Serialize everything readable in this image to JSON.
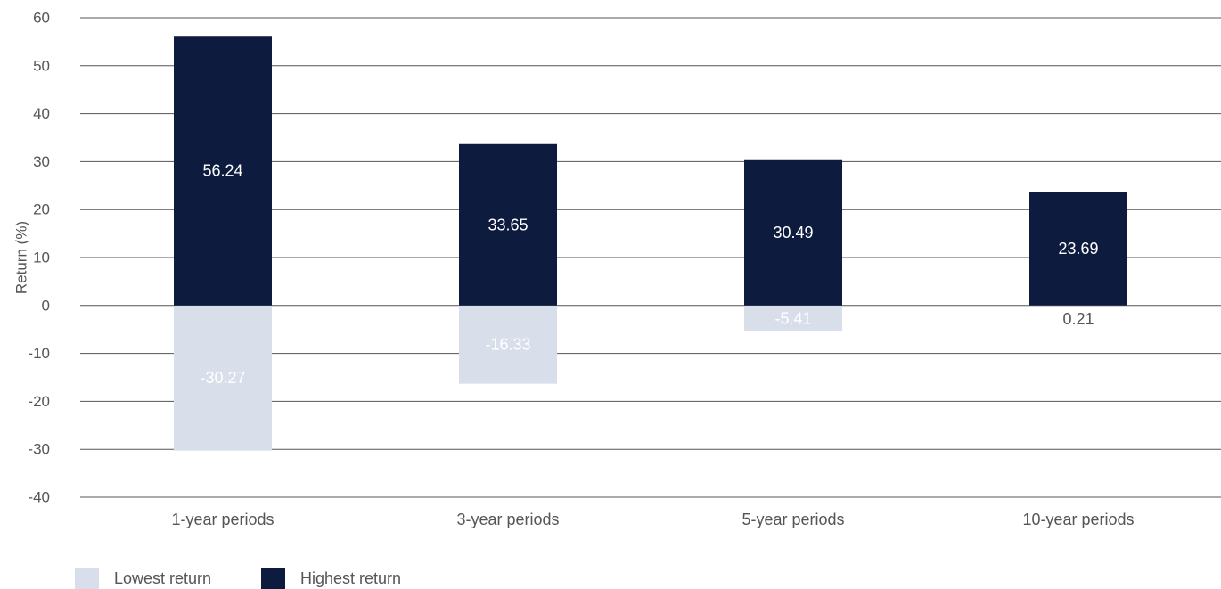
{
  "chart_data": {
    "type": "bar",
    "title": "",
    "xlabel": "",
    "ylabel": "Return (%)",
    "ylim": [
      -40,
      60
    ],
    "yticks": [
      60,
      50,
      40,
      30,
      20,
      10,
      0,
      -10,
      -20,
      -30,
      -40
    ],
    "grid": true,
    "legend_position": "bottom-left",
    "categories": [
      "1-year periods",
      "3-year periods",
      "5-year periods",
      "10-year periods"
    ],
    "series": [
      {
        "name": "Lowest return",
        "values": [
          -30.27,
          -16.33,
          -5.41,
          0.21
        ],
        "color": "#d9dfea",
        "label_color": "#ffffff"
      },
      {
        "name": "Highest return",
        "values": [
          56.24,
          33.65,
          30.49,
          23.69
        ],
        "color": "#0c1b3e",
        "label_color": "#ffffff"
      }
    ],
    "colors": {
      "grid": "#555555",
      "text": "#555555",
      "lowest_positive_label": "#555555"
    }
  }
}
